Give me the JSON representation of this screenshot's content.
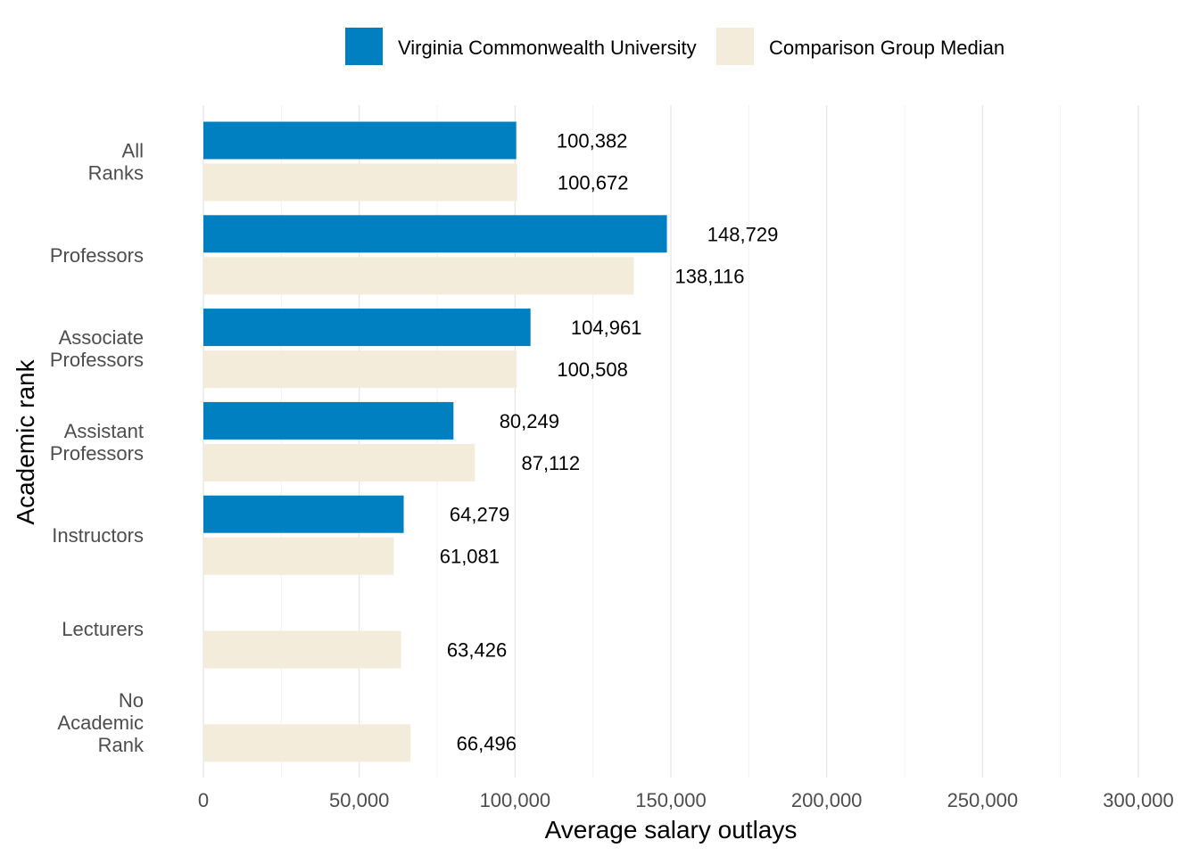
{
  "chart_data": {
    "type": "bar",
    "orientation": "horizontal",
    "title": "",
    "xlabel": "Average salary outlays",
    "ylabel": "Academic rank",
    "xlim": [
      0,
      300000
    ],
    "xticks": [
      0,
      50000,
      100000,
      150000,
      200000,
      250000,
      300000
    ],
    "xtick_labels": [
      "0",
      "50,000",
      "100,000",
      "150,000",
      "200,000",
      "250,000",
      "300,000"
    ],
    "grid": "vertical",
    "legend_position": "top",
    "categories": [
      [
        "All",
        "Ranks"
      ],
      [
        "Professors"
      ],
      [
        "Associate",
        "Professors"
      ],
      [
        "Assistant",
        "Professors"
      ],
      [
        "Instructors"
      ],
      [
        "Lecturers"
      ],
      [
        "No",
        "Academic",
        "Rank"
      ]
    ],
    "series": [
      {
        "name": "Virginia Commonwealth University",
        "color": "#0080c0",
        "values": [
          100382,
          148729,
          104961,
          80249,
          64279,
          null,
          null
        ],
        "labels": [
          "100,382",
          "148,729",
          "104,961",
          "80,249",
          "64,279",
          null,
          null
        ]
      },
      {
        "name": "Comparison Group Median",
        "color": "#f3ecda",
        "values": [
          100672,
          138116,
          100508,
          87112,
          61081,
          63426,
          66496
        ],
        "labels": [
          "100,672",
          "138,116",
          "100,508",
          "87,112",
          "61,081",
          "63,426",
          "66,496"
        ]
      }
    ]
  }
}
